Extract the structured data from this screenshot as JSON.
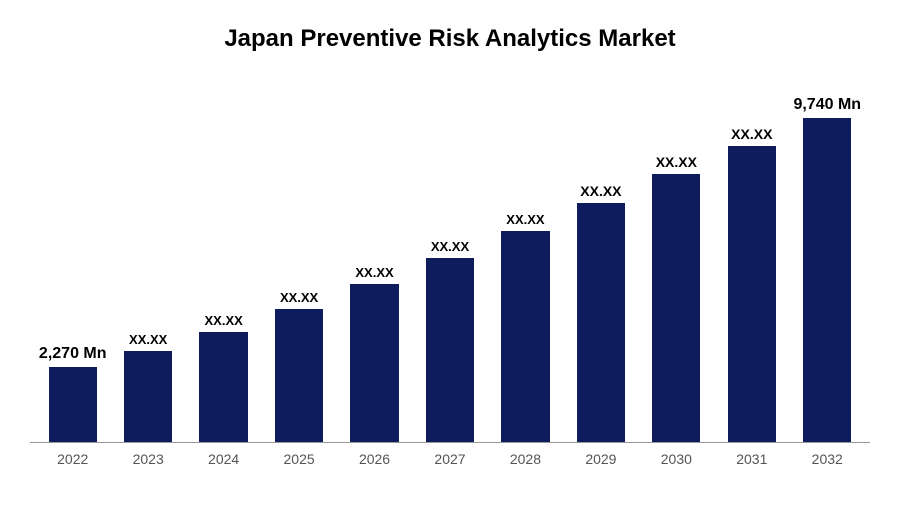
{
  "chart": {
    "type": "bar",
    "title": "Japan Preventive Risk Analytics Market",
    "title_fontsize": 24,
    "title_color": "#000000",
    "background_color": "#ffffff",
    "bar_color": "#0e1b5c",
    "axis_color": "#999999",
    "x_label_color": "#555555",
    "x_label_fontsize": 14,
    "bar_label_color": "#000000",
    "categories": [
      "2022",
      "2023",
      "2024",
      "2025",
      "2026",
      "2027",
      "2028",
      "2029",
      "2030",
      "2031",
      "2032"
    ],
    "values": [
      2270,
      2750,
      3320,
      4000,
      4750,
      5550,
      6350,
      7200,
      8050,
      8900,
      9740
    ],
    "bar_labels": [
      "2,270 Mn",
      "XX.XX",
      "XX.XX",
      "XX.XX",
      "XX.XX",
      "XX.XX",
      "XX.XX",
      "XX.XX",
      "XX.XX",
      "XX.XX",
      "9,740 Mn"
    ],
    "bar_label_fontsizes": [
      16,
      13,
      13,
      13,
      13,
      13,
      13,
      14,
      14,
      14,
      16
    ],
    "ylim": [
      0,
      10500
    ],
    "bar_width": 0.64
  }
}
